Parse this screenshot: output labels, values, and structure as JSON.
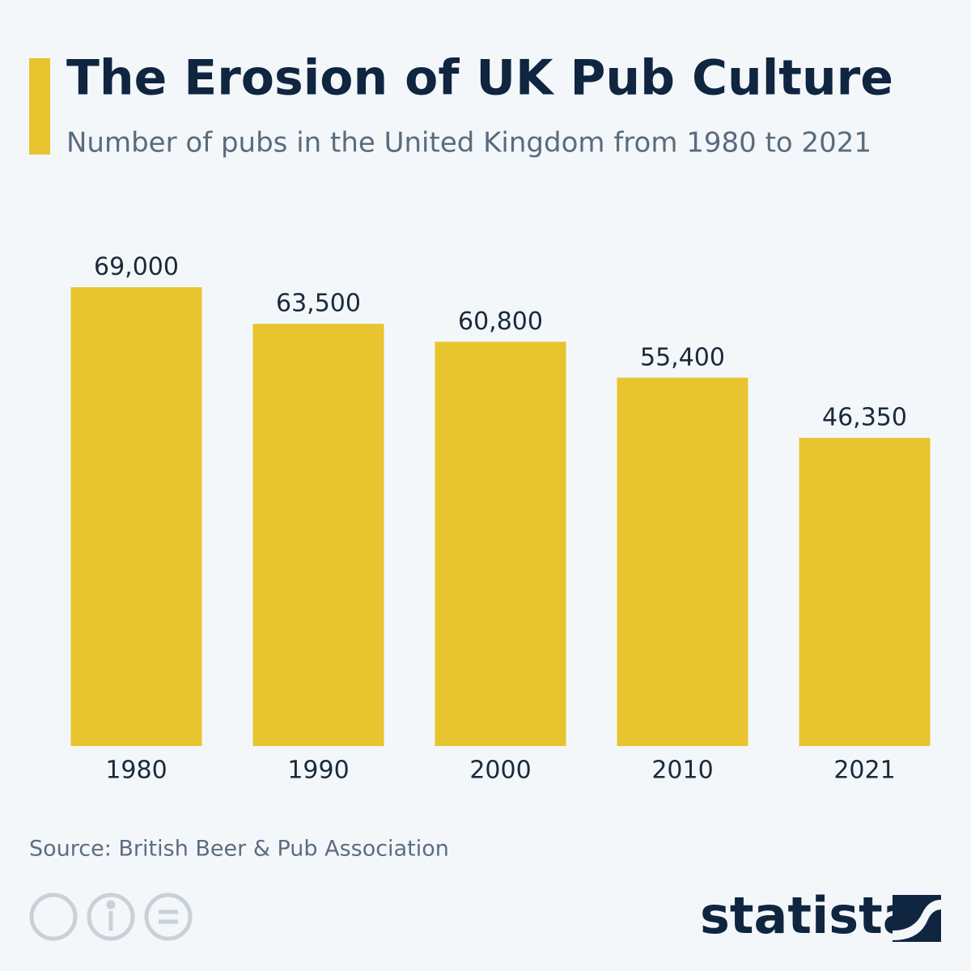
{
  "chart_data": {
    "type": "bar",
    "title": "The Erosion of UK Pub Culture",
    "subtitle": "Number of pubs in the United Kingdom from 1980 to 2021",
    "categories": [
      "1980",
      "1990",
      "2000",
      "2010",
      "2021"
    ],
    "values": [
      69000,
      63500,
      60800,
      55400,
      46350
    ],
    "value_labels": [
      "69,000",
      "63,500",
      "60,800",
      "55,400",
      "46,350"
    ],
    "color": "#e8c42e",
    "source": "Source: British Beer & Pub Association",
    "brand": "statista"
  }
}
